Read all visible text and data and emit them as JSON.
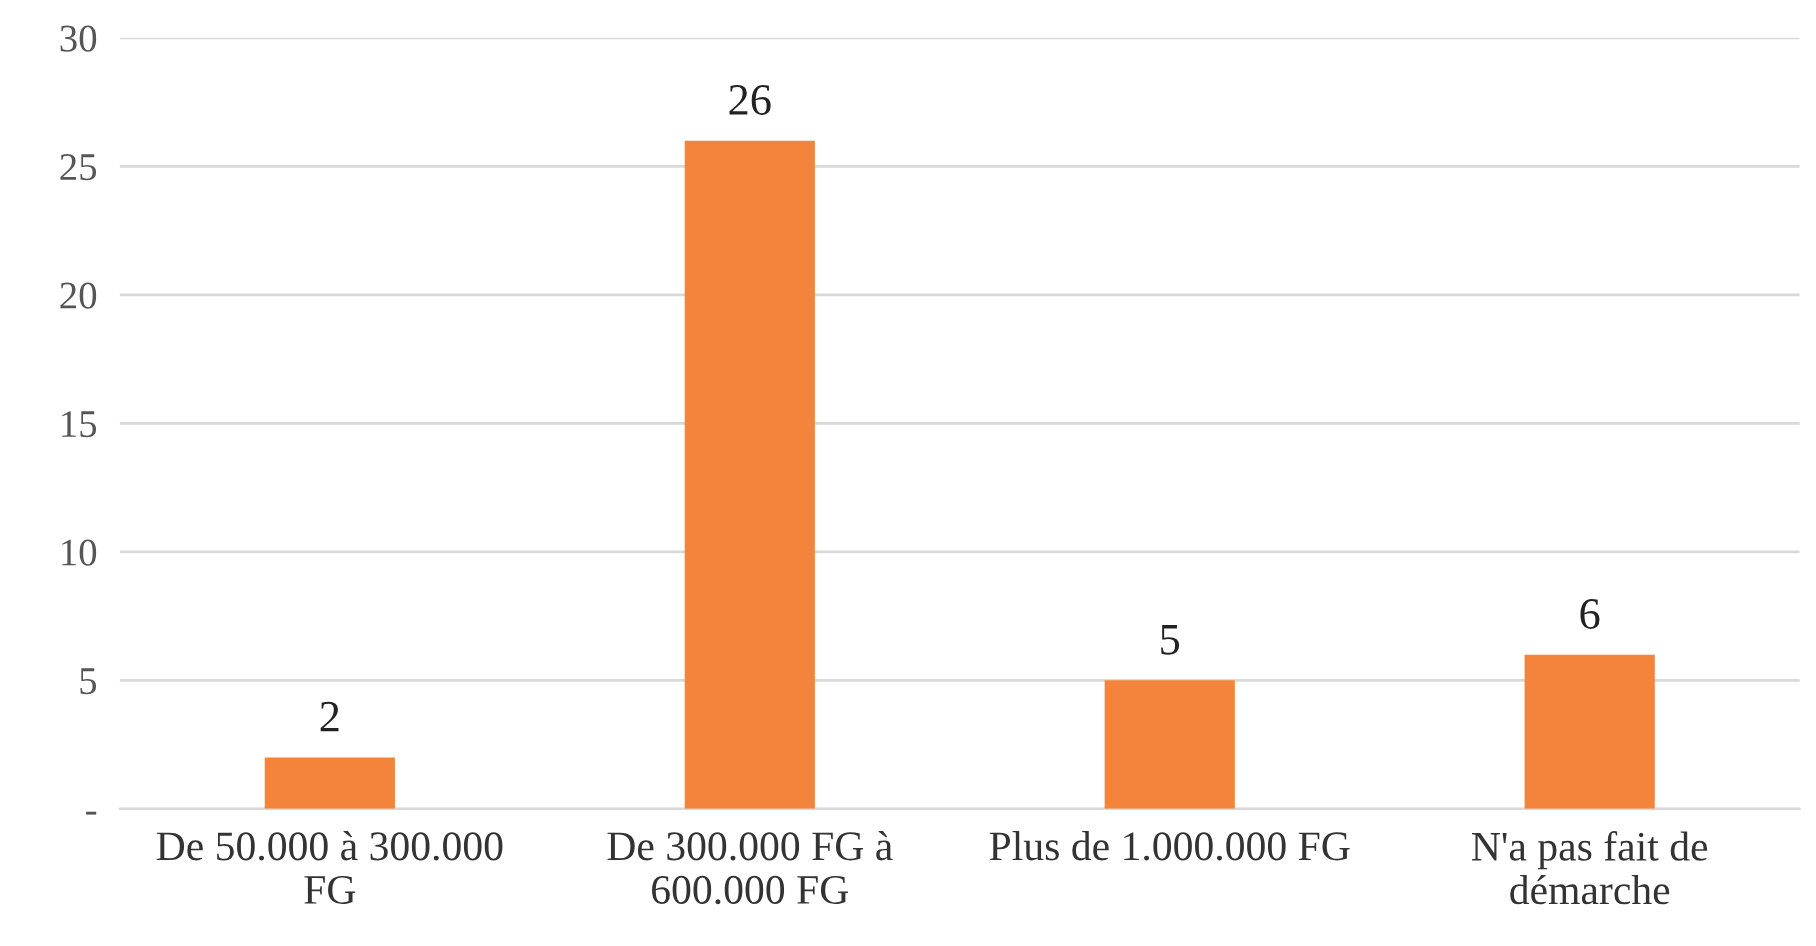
{
  "chart_data": {
    "type": "bar",
    "categories": [
      "De 50.000 à 300.000\nFG",
      "De 300.000 FG à\n600.000 FG",
      "Plus de 1.000.000 FG",
      "N'a pas fait de\ndémarche"
    ],
    "values": [
      2,
      26,
      5,
      6
    ],
    "color": "#f4843b",
    "ylim": [
      0,
      30
    ],
    "yticks": [
      {
        "value": 0,
        "label": "-"
      },
      5,
      10,
      15,
      20,
      25,
      30
    ],
    "grid": "y",
    "data_labels": true
  }
}
